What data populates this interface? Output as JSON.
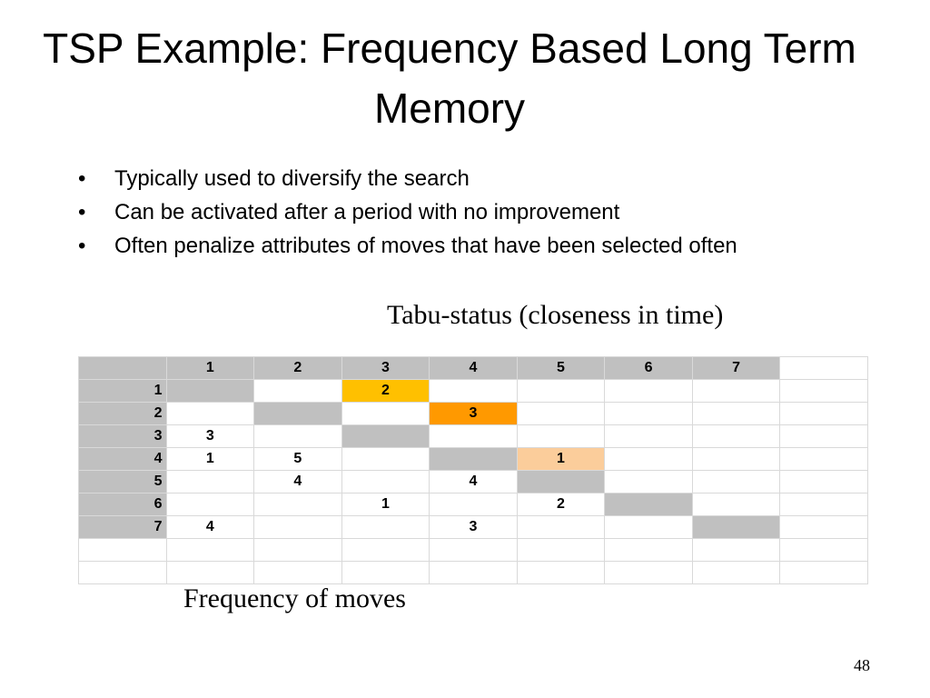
{
  "title": "TSP Example: Frequency Based Long Term Memory",
  "bullets": [
    "Typically used to diversify the search",
    "Can be activated after a period with no improvement",
    "Often penalize attributes of moves that have been selected often"
  ],
  "bullet_symbol": "•",
  "tabu_caption": "Tabu-status (closeness in time)",
  "freq_caption": "Frequency of moves",
  "page_number": "48",
  "colors": {
    "diagonal_gray": "#c0c0c0",
    "recent_1": "#ffc000",
    "recent_2": "#ff9900",
    "recent_3": "#fbcd9b"
  },
  "table": {
    "col_headers": [
      "1",
      "2",
      "3",
      "4",
      "5",
      "6",
      "7"
    ],
    "rows": [
      {
        "label": "1",
        "cells": [
          "",
          "",
          "2",
          "",
          "",
          "",
          ""
        ]
      },
      {
        "label": "2",
        "cells": [
          "",
          "",
          "",
          "3",
          "",
          "",
          ""
        ]
      },
      {
        "label": "3",
        "cells": [
          "3",
          "",
          "",
          "",
          "",
          "",
          ""
        ]
      },
      {
        "label": "4",
        "cells": [
          "1",
          "5",
          "",
          "",
          "1",
          "",
          ""
        ]
      },
      {
        "label": "5",
        "cells": [
          "",
          "4",
          "",
          "4",
          "",
          "",
          ""
        ]
      },
      {
        "label": "6",
        "cells": [
          "",
          "",
          "1",
          "",
          "2",
          "",
          ""
        ]
      },
      {
        "label": "7",
        "cells": [
          "4",
          "",
          "",
          "3",
          "",
          "",
          ""
        ]
      }
    ]
  }
}
